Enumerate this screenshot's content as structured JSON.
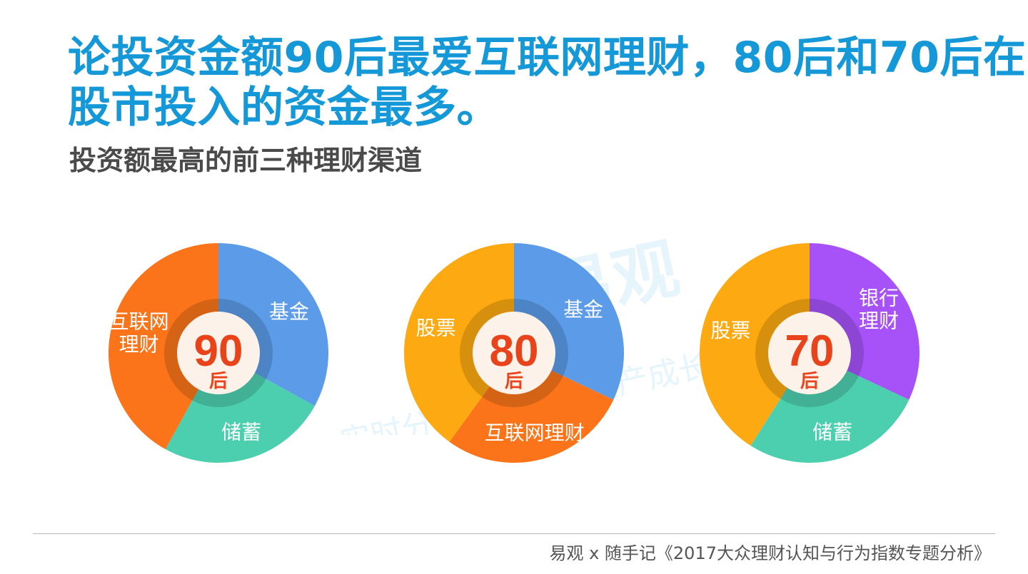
{
  "header": {
    "title_line1": "论投资金额90后最爱互联网理财，80后和70后在",
    "title_line2": "股市投入的资金最多。",
    "subtitle": "投资额最高的前三种理财渠道"
  },
  "watermark": {
    "brand": "易观",
    "line": "实时分析驱动用户资产成长"
  },
  "chart_data": [
    {
      "type": "pie",
      "center_number": "90",
      "center_unit": "后",
      "slices": [
        {
          "label": [
            "基金"
          ],
          "value": 33,
          "color": "#5b9be8"
        },
        {
          "label": [
            "储蓄"
          ],
          "value": 25,
          "color": "#4ccfae"
        },
        {
          "label": [
            "互联网",
            "理财"
          ],
          "value": 42,
          "color": "#fb7419"
        }
      ]
    },
    {
      "type": "pie",
      "center_number": "80",
      "center_unit": "后",
      "slices": [
        {
          "label": [
            "基金"
          ],
          "value": 32,
          "color": "#5b9be8"
        },
        {
          "label": [
            "互联网理财"
          ],
          "value": 28,
          "color": "#fb7419"
        },
        {
          "label": [
            "股票"
          ],
          "value": 40,
          "color": "#fda911"
        }
      ]
    },
    {
      "type": "pie",
      "center_number": "70",
      "center_unit": "后",
      "slices": [
        {
          "label": [
            "银行",
            "理财"
          ],
          "value": 32,
          "color": "#a652f8"
        },
        {
          "label": [
            "储蓄"
          ],
          "value": 27,
          "color": "#4ccfae"
        },
        {
          "label": [
            "股票"
          ],
          "value": 41,
          "color": "#fda911"
        }
      ]
    }
  ],
  "colors": {
    "title": "#1598d8",
    "center_number": "#e8431b",
    "center_disc": "#fdf2ea"
  },
  "footer": {
    "source": "易观 x 随手记《2017大众理财认知与行为指数专题分析》"
  }
}
